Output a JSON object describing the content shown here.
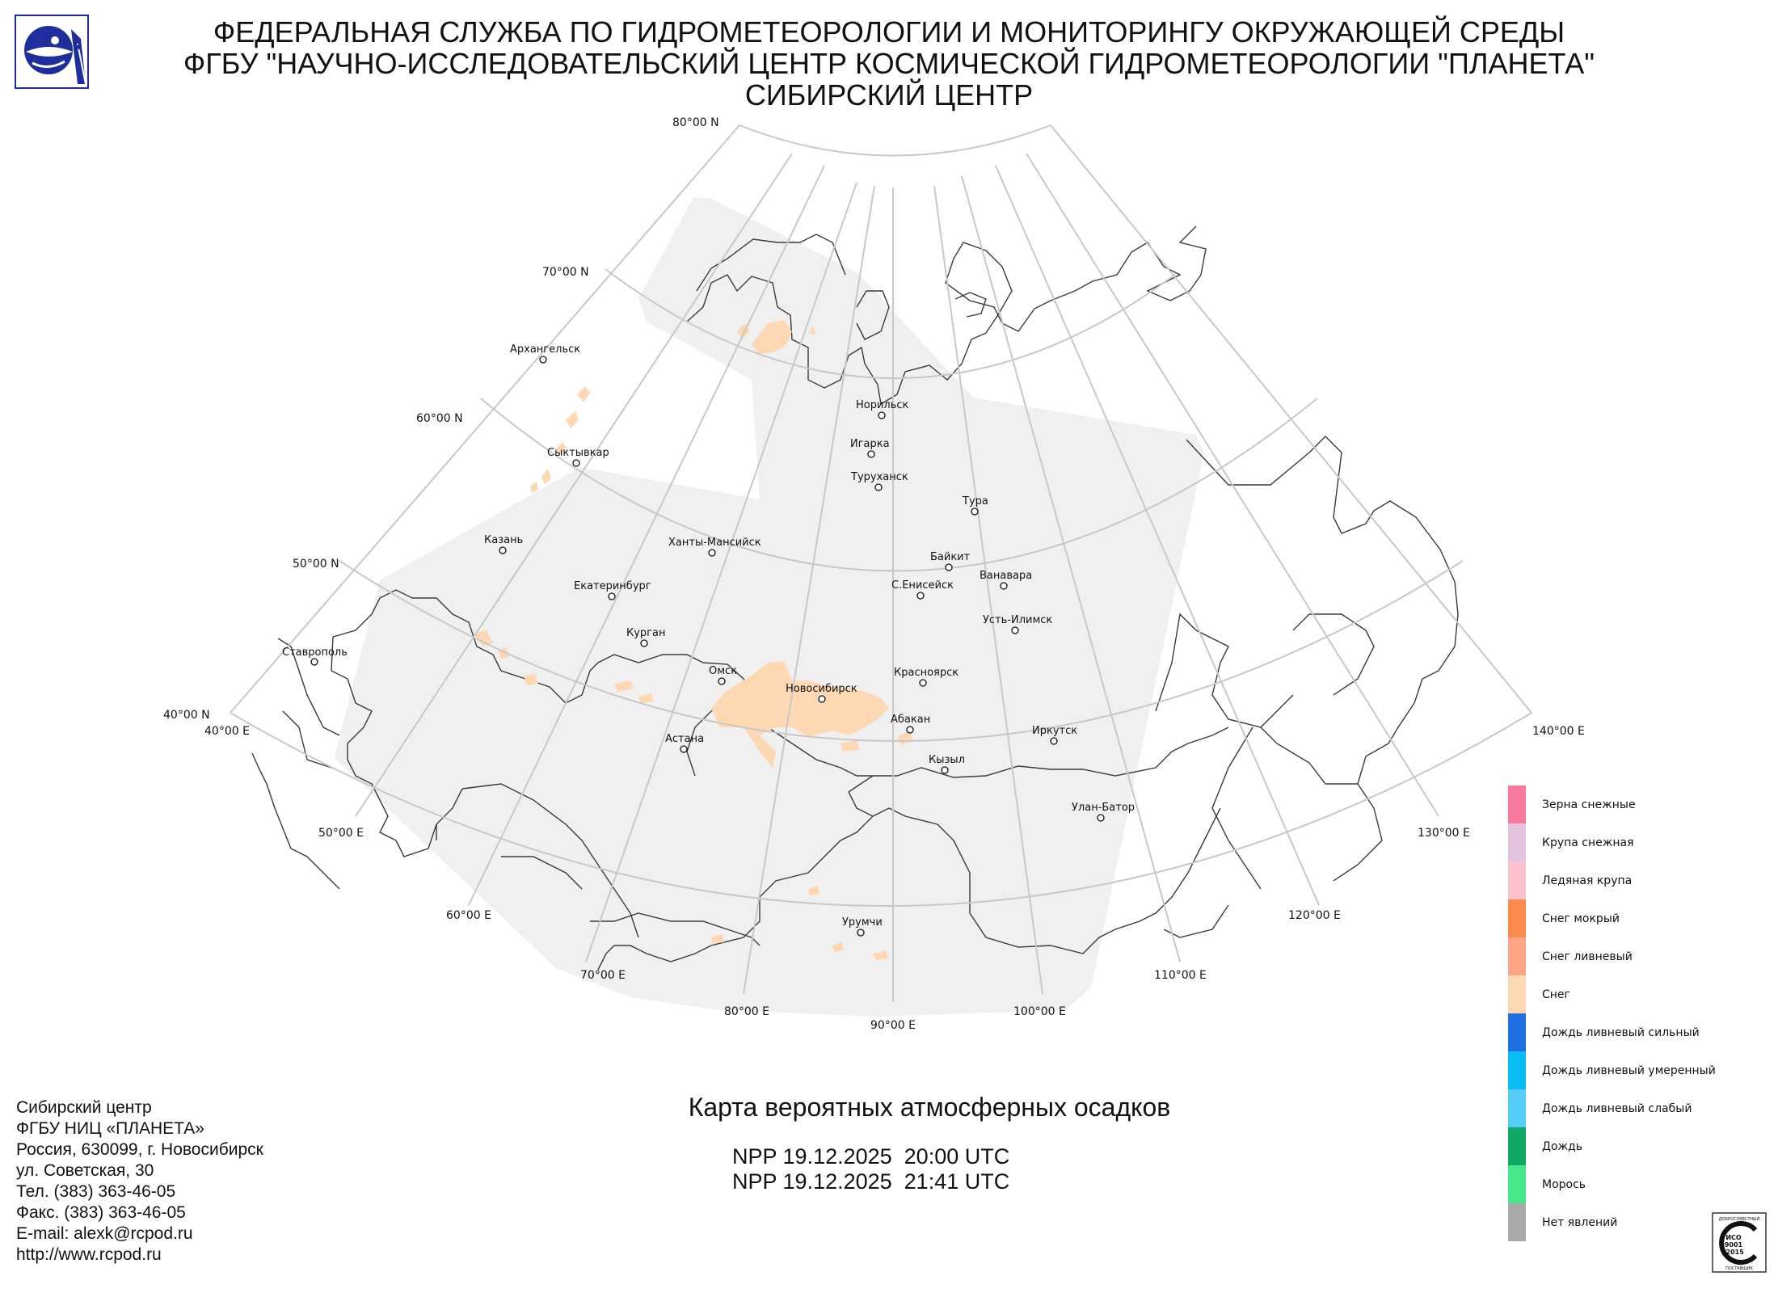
{
  "header": {
    "line1": "ФЕДЕРАЛЬНАЯ СЛУЖБА ПО ГИДРОМЕТЕОРОЛОГИИ И МОНИТОРИНГУ ОКРУЖАЮЩЕЙ СРЕДЫ",
    "line2": "ФГБУ \"НАУЧНО-ИССЛЕДОВАТЕЛЬСКИЙ ЦЕНТР КОСМИЧЕСКОЙ ГИДРОМЕТЕОРОЛОГИИ \"ПЛАНЕТА\"",
    "line3": "СИБИРСКИЙ ЦЕНТР",
    "logo_icon": "roshydromet-logo-icon"
  },
  "map": {
    "latitude_labels": [
      "80°00 N",
      "70°00 N",
      "60°00 N",
      "50°00 N",
      "40°00 N"
    ],
    "longitude_labels": [
      "40°00 E",
      "50°00 E",
      "60°00 E",
      "70°00 E",
      "80°00 E",
      "90°00 E",
      "100°00 E",
      "110°00 E",
      "120°00 E",
      "130°00 E",
      "140°00 E"
    ],
    "cities": [
      "Архангельск",
      "Сыктывкар",
      "Казань",
      "Ставрополь",
      "Екатеринбург",
      "Ханты-Мансийск",
      "Курган",
      "Омск",
      "Астана",
      "Новосибирск",
      "Норильск",
      "Игарка",
      "Туруханск",
      "Тура",
      "Байкит",
      "С.Енисейск",
      "Ванавара",
      "Усть-Илимск",
      "Красноярск",
      "Абакан",
      "Кызыл",
      "Иркутск",
      "Улан-Батор",
      "Урумчи"
    ],
    "coverage_color": "#f0f0f0",
    "precip_color": "#fdd8b3",
    "grid_color": "#c8c8c8"
  },
  "title": "Карта вероятных атмосферных осадков",
  "passes": [
    "NPP 19.12.2025  20:00 UTC",
    "NPP 19.12.2025  21:41 UTC"
  ],
  "org_info": [
    "Сибирский центр",
    "ФГБУ НИЦ «ПЛАНЕТА»",
    "Россия, 630099, г. Новосибирск",
    "ул. Советская, 30",
    "Тел. (383) 363-46-05",
    "Факс. (383) 363-46-05",
    "E-mail: alexk@rcpod.ru",
    "http://www.rcpod.ru"
  ],
  "legend": [
    {
      "label": "Зерна снежные",
      "color": "#f7799c"
    },
    {
      "label": "Крупа снежная",
      "color": "#e2c4dd"
    },
    {
      "label": "Ледяная крупа",
      "color": "#fdc2d0"
    },
    {
      "label": "Снег мокрый",
      "color": "#fc8a4f"
    },
    {
      "label": "Снег ливневый",
      "color": "#fca687"
    },
    {
      "label": "Снег",
      "color": "#fdd8b3"
    },
    {
      "label": "Дождь ливневый сильный",
      "color": "#1f6fe0"
    },
    {
      "label": "Дождь ливневый умеренный",
      "color": "#0bbdf5"
    },
    {
      "label": "Дождь ливневый слабый",
      "color": "#55cdf7"
    },
    {
      "label": "Дождь",
      "color": "#0fa865"
    },
    {
      "label": "Морось",
      "color": "#47e88a"
    },
    {
      "label": "Нет явлений",
      "color": "#a9a9a9"
    }
  ],
  "iso_badge": {
    "line1": "ИСО",
    "line2": "9001",
    "line3": "-2015",
    "arc_top": "ДОБРОСОВЕСТНЫЙ",
    "arc_bottom": "ПОСТАВЩИК",
    "icon": "iso-certification-icon"
  }
}
